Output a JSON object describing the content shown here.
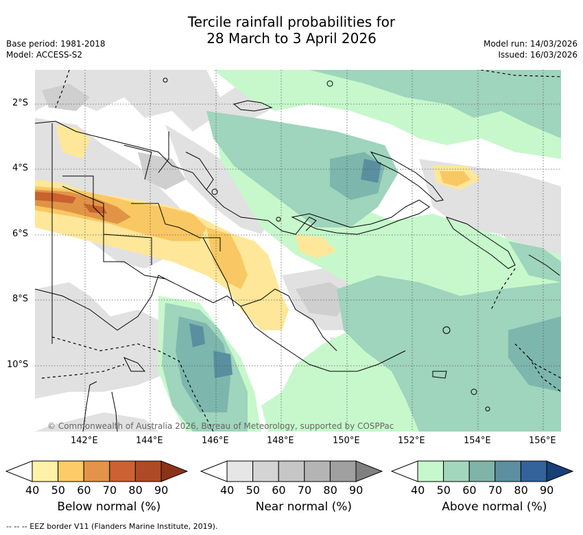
{
  "title": {
    "line1": "Tercile rainfall probabilities for",
    "line2": "28 March to 3 April 2026"
  },
  "meta_left": {
    "base_period": "Base period: 1981-2018",
    "model": "Model: ACCESS-S2"
  },
  "meta_right": {
    "model_run": "Model run: 14/03/2026",
    "issued": "Issued: 16/03/2026"
  },
  "map": {
    "lat_labels": [
      "2°S",
      "4°S",
      "6°S",
      "8°S",
      "10°S"
    ],
    "lon_labels": [
      "142°E",
      "144°E",
      "146°E",
      "148°E",
      "150°E",
      "152°E",
      "154°E",
      "156°E"
    ],
    "credit": "© Commonwealth of Australia 2026, Bureau of Meteorology, supported by COSPPac",
    "colors": {
      "ocean_white": "#ffffff",
      "near_light": "#e1e1e1",
      "near_mid": "#cfcfcf",
      "above_50": "#c6f8cb",
      "above_60": "#9fd4bd",
      "above_70": "#7db6ad",
      "above_80": "#5a8f9f",
      "below_50": "#ffe799",
      "below_60": "#f9c864",
      "below_70": "#e19446",
      "below_80": "#c9622e"
    }
  },
  "colorbars": [
    {
      "name": "below",
      "title": "Below normal (%)",
      "ticks": [
        "40",
        "50",
        "60",
        "70",
        "80",
        "90"
      ],
      "colors": [
        "#ffffff",
        "#fff1a8",
        "#fdcb67",
        "#e4944a",
        "#cc6233",
        "#ae4a26",
        "#8c3317"
      ]
    },
    {
      "name": "near",
      "title": "Near normal (%)",
      "ticks": [
        "40",
        "50",
        "60",
        "70",
        "80",
        "90"
      ],
      "colors": [
        "#ffffff",
        "#e6e6e6",
        "#d4d4d4",
        "#c6c6c6",
        "#b4b4b4",
        "#a0a0a0",
        "#808080"
      ]
    },
    {
      "name": "above",
      "title": "Above normal (%)",
      "ticks": [
        "40",
        "50",
        "60",
        "70",
        "80",
        "90"
      ],
      "colors": [
        "#ffffff",
        "#c6f8cb",
        "#a3d7bd",
        "#7fb4a9",
        "#5c8fa0",
        "#34629a",
        "#173f78"
      ]
    }
  ],
  "footnote": "-- --  -- EEZ border V11 (Flanders Marine Institute, 2019)."
}
